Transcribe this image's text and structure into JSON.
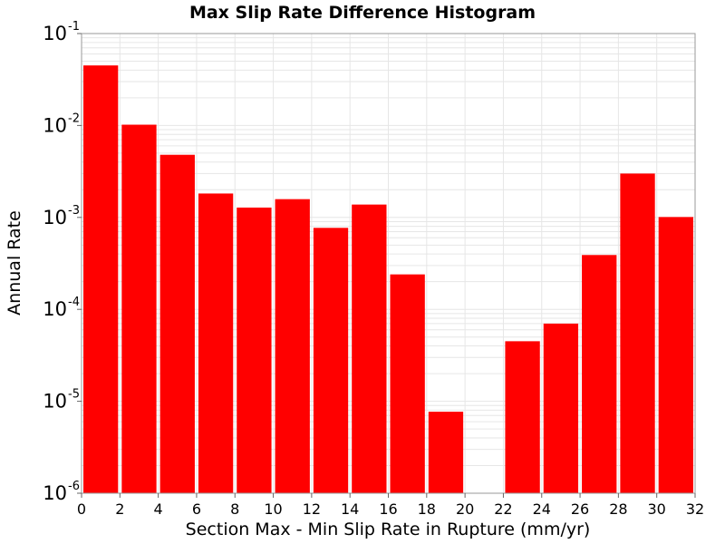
{
  "chart_data": {
    "type": "bar",
    "title": "Max Slip Rate Difference Histogram",
    "xlabel": "Section Max - Min Slip Rate in Rupture (mm/yr)",
    "ylabel": "Annual Rate",
    "xlim": [
      0,
      32
    ],
    "ylim": [
      1e-06,
      0.1
    ],
    "yscale": "log",
    "bar_width": 2,
    "x": [
      1,
      3,
      5,
      7,
      9,
      11,
      13,
      15,
      17,
      19,
      21,
      23,
      25,
      27,
      29,
      31
    ],
    "values": [
      0.045,
      0.0102,
      0.0048,
      0.00182,
      0.00128,
      0.00158,
      0.00077,
      0.00138,
      0.00024,
      7.7e-06,
      null,
      4.5e-05,
      7e-05,
      0.00039,
      0.003,
      0.00101
    ],
    "x_ticks": [
      "0",
      "2",
      "4",
      "6",
      "8",
      "10",
      "12",
      "14",
      "16",
      "18",
      "20",
      "22",
      "24",
      "26",
      "28",
      "30",
      "32"
    ],
    "y_ticks": [
      {
        "base": "10",
        "exp": "-6"
      },
      {
        "base": "10",
        "exp": "-5"
      },
      {
        "base": "10",
        "exp": "-4"
      },
      {
        "base": "10",
        "exp": "-3"
      },
      {
        "base": "10",
        "exp": "-2"
      },
      {
        "base": "10",
        "exp": "-1"
      }
    ],
    "grid": true,
    "colors": {
      "bar": "#ff0000",
      "grid": "#e6e6e6",
      "frame": "#9a9a9a"
    }
  }
}
